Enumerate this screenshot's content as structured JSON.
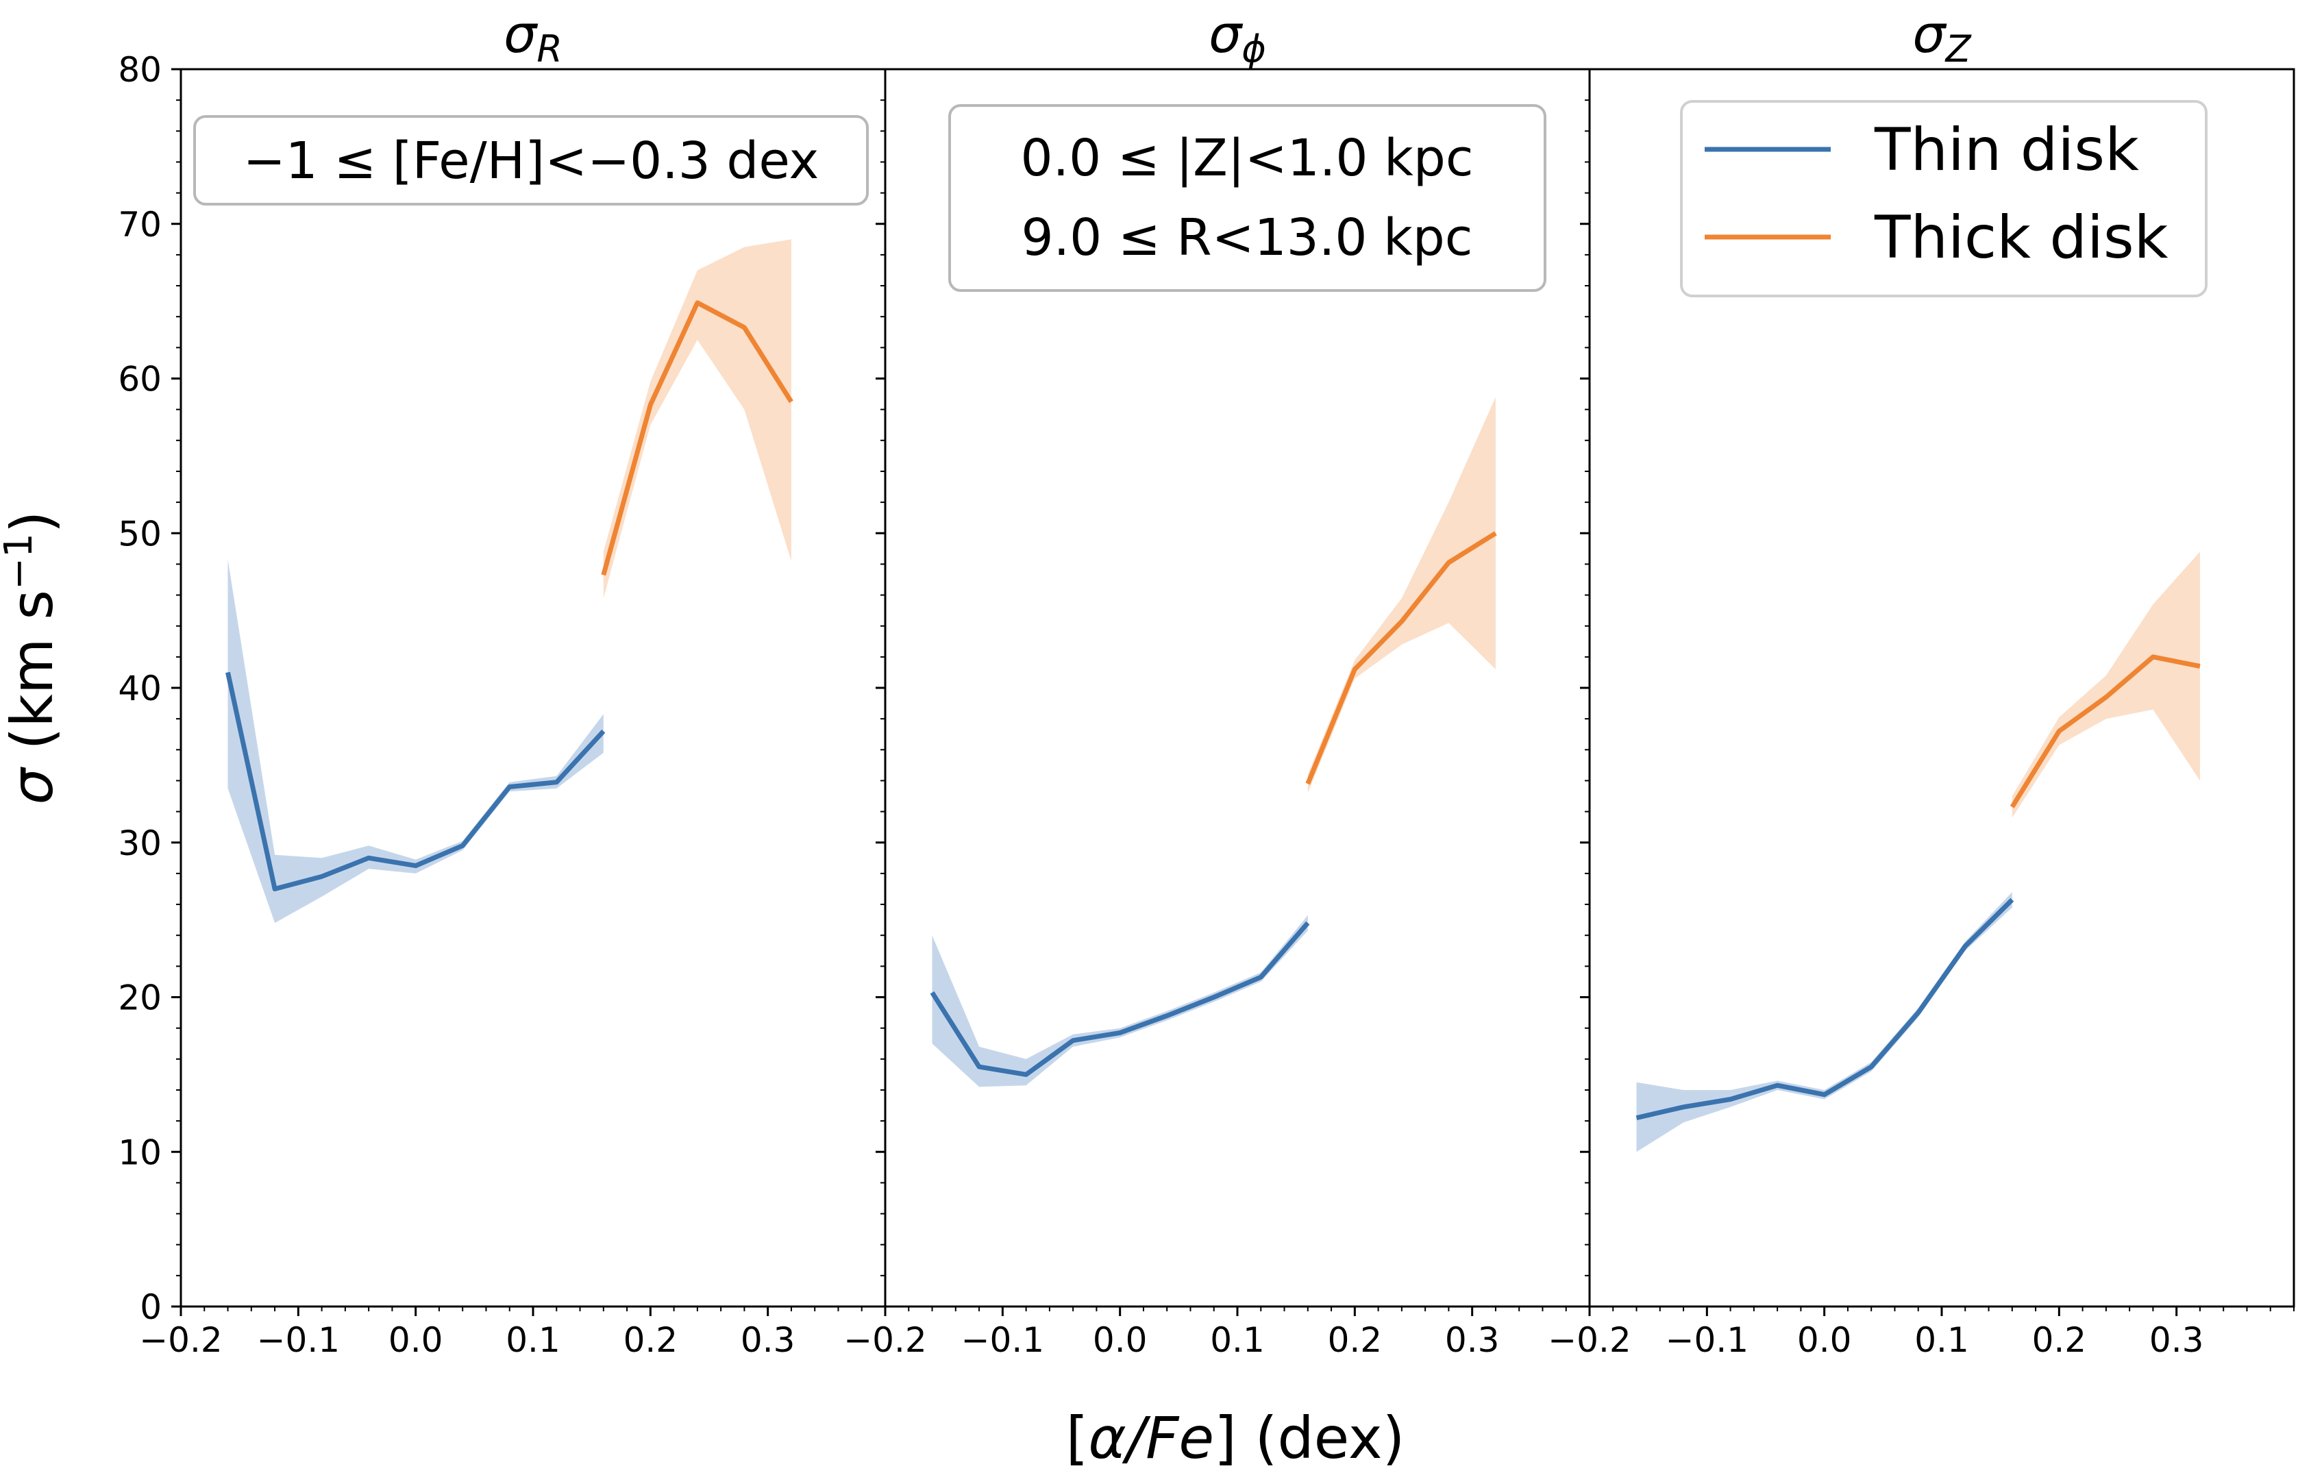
{
  "chart_data": {
    "type": "line",
    "xlabel": "[α/Fe] (dex)",
    "xlabel_parts": {
      "open": "[",
      "sym": "α/Fe",
      "close": "] (dex)"
    },
    "ylabel": "σ (km s⁻¹)",
    "ylabel_parts": {
      "sym": "σ",
      "main": " (km s",
      "sup": "−1",
      "close": ")"
    },
    "xlim": [
      -0.2,
      0.4
    ],
    "ylim": [
      0,
      80
    ],
    "xticks": [
      -0.2,
      -0.1,
      0.0,
      0.1,
      0.2,
      0.3
    ],
    "xtick_labels": [
      "−0.2",
      "−0.1",
      "0.0",
      "0.1",
      "0.2",
      "0.3"
    ],
    "yticks": [
      0,
      10,
      20,
      30,
      40,
      50,
      60,
      70,
      80
    ],
    "ytick_labels": [
      "0",
      "10",
      "20",
      "30",
      "40",
      "50",
      "60",
      "70",
      "80"
    ],
    "legend": {
      "position": "top-right",
      "entries": [
        {
          "label": "Thin disk",
          "color": "#3a73ae"
        },
        {
          "label": "Thick disk",
          "color": "#ef8432"
        }
      ]
    },
    "annotations": {
      "feh": "−1 ≤ [Fe/H]<−0.3 dex",
      "z_range": "0.0 ≤ |Z|<1.0 kpc",
      "r_range": "9.0 ≤ R<13.0 kpc"
    },
    "colors": {
      "thin": "#3a73ae",
      "thin_band": "#c6d6ea",
      "thick": "#ef8432",
      "thick_band": "#fbdfc9"
    },
    "panels": [
      {
        "title": "σ_R",
        "title_main": "σ",
        "title_sub": "R",
        "series": [
          {
            "name": "Thin disk",
            "x": [
              -0.16,
              -0.12,
              -0.08,
              -0.04,
              0.0,
              0.04,
              0.08,
              0.12,
              0.16
            ],
            "y": [
              41.0,
              27.0,
              27.8,
              29.0,
              28.5,
              29.8,
              33.6,
              33.9,
              37.2
            ],
            "lower": [
              33.5,
              24.8,
              26.5,
              28.3,
              28.0,
              29.5,
              33.3,
              33.5,
              35.8
            ],
            "upper": [
              48.3,
              29.2,
              29.0,
              29.8,
              28.9,
              30.1,
              33.9,
              34.3,
              38.3
            ]
          },
          {
            "name": "Thick disk",
            "x": [
              0.16,
              0.2,
              0.24,
              0.28,
              0.32
            ],
            "y": [
              47.3,
              58.3,
              64.9,
              63.3,
              58.5
            ],
            "lower": [
              45.8,
              57.0,
              62.5,
              58.0,
              48.2
            ],
            "upper": [
              48.8,
              59.8,
              67.0,
              68.5,
              69.0
            ]
          }
        ]
      },
      {
        "title": "σ_φ",
        "title_main": "σ",
        "title_sub": "ϕ",
        "series": [
          {
            "name": "Thin disk",
            "x": [
              -0.16,
              -0.12,
              -0.08,
              -0.04,
              0.0,
              0.04,
              0.08,
              0.12,
              0.16
            ],
            "y": [
              20.3,
              15.5,
              15.0,
              17.2,
              17.7,
              18.8,
              20.0,
              21.3,
              24.8
            ],
            "lower": [
              17.0,
              14.2,
              14.3,
              16.8,
              17.4,
              18.5,
              19.7,
              21.0,
              24.3
            ],
            "upper": [
              24.0,
              16.8,
              16.0,
              17.6,
              18.0,
              19.1,
              20.3,
              21.6,
              25.3
            ]
          },
          {
            "name": "Thick disk",
            "x": [
              0.16,
              0.2,
              0.24,
              0.28,
              0.32
            ],
            "y": [
              33.8,
              41.2,
              44.3,
              48.1,
              50.0
            ],
            "lower": [
              33.2,
              40.6,
              42.8,
              44.2,
              41.2
            ],
            "upper": [
              34.4,
              41.8,
              45.8,
              52.0,
              58.8
            ]
          }
        ]
      },
      {
        "title": "σ_Z",
        "title_main": "σ",
        "title_sub": "Z",
        "series": [
          {
            "name": "Thin disk",
            "x": [
              -0.16,
              -0.12,
              -0.08,
              -0.04,
              0.0,
              0.04,
              0.08,
              0.12,
              0.16
            ],
            "y": [
              12.2,
              12.9,
              13.4,
              14.3,
              13.7,
              15.5,
              19.0,
              23.3,
              26.3
            ],
            "lower": [
              10.0,
              11.9,
              12.9,
              14.0,
              13.4,
              15.2,
              18.7,
              23.0,
              25.8
            ],
            "upper": [
              14.5,
              14.0,
              14.0,
              14.6,
              14.0,
              15.8,
              19.3,
              23.6,
              26.8
            ]
          },
          {
            "name": "Thick disk",
            "x": [
              0.16,
              0.2,
              0.24,
              0.28,
              0.32
            ],
            "y": [
              32.3,
              37.2,
              39.4,
              42.0,
              41.4
            ],
            "lower": [
              31.6,
              36.3,
              38.0,
              38.6,
              34.0
            ],
            "upper": [
              33.0,
              38.1,
              40.8,
              45.4,
              48.8
            ]
          }
        ]
      }
    ]
  }
}
